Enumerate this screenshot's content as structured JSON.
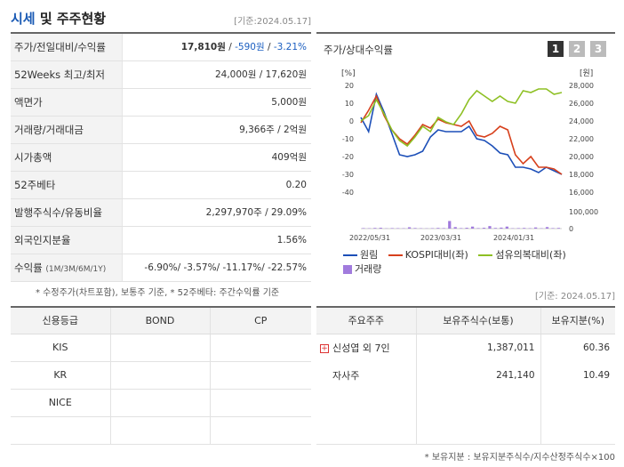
{
  "header": {
    "title_blue": "시세",
    "title_rest": " 및 주주현황",
    "date": "[기준:2024.05.17]"
  },
  "info": [
    {
      "label": "주가/전일대비/수익률",
      "price": "17,810원",
      "sep1": " / ",
      "change": "-590원",
      "sep2": " / ",
      "rate": "-3.21%"
    },
    {
      "label": "52Weeks 최고/최저",
      "value": "24,000원 / 17,620원"
    },
    {
      "label": "액면가",
      "value": "5,000원"
    },
    {
      "label": "거래량/거래대금",
      "value": "9,366주 / 2억원"
    },
    {
      "label": "시가총액",
      "value": "409억원"
    },
    {
      "label": "52주베타",
      "value": "0.20"
    },
    {
      "label": "발행주식수/유동비율",
      "value": "2,297,970주 / 29.09%"
    },
    {
      "label": "외국인지분율",
      "value": "1.56%"
    },
    {
      "label": "수익률",
      "label_small": "(1M/3M/6M/1Y)",
      "value": "-6.90%/ -3.57%/ -11.17%/ -22.57%"
    }
  ],
  "note": "* 수정주가(차트포함), 보통주 기준, * 52주베타: 주간수익률 기준",
  "chart_panel": {
    "title": "주가/상대수익률",
    "tabs": [
      "1",
      "2",
      "3"
    ],
    "mid_date": "[기준: 2024.05.17]"
  },
  "chart_data": {
    "type": "line",
    "left_axis": {
      "unit": "[%]",
      "ticks": [
        "20",
        "10",
        "0",
        "-10",
        "-20",
        "-30",
        "-40"
      ],
      "range": [
        -40,
        20
      ]
    },
    "right_axis": {
      "unit": "[원]",
      "ticks": [
        "28,000",
        "26,000",
        "24,000",
        "22,000",
        "20,000",
        "18,000",
        "16,000"
      ],
      "range": [
        16000,
        28000
      ]
    },
    "volume_axis": {
      "ticks": [
        "100,000",
        "0"
      ],
      "range": [
        0,
        100000
      ]
    },
    "x_ticks": [
      "2022/05/31",
      "2023/03/31",
      "2024/01/31"
    ],
    "series": [
      {
        "name": "원림",
        "color": "#1c4fb8",
        "values": [
          2,
          -6,
          15,
          5,
          -7,
          -19,
          -20,
          -19,
          -17,
          -9,
          -5,
          -6,
          -6,
          -6,
          -3,
          -10,
          -11,
          -14,
          -18,
          -19,
          -26,
          -26,
          -27,
          -29,
          -26,
          -28,
          -30
        ]
      },
      {
        "name": "KOSPI대비(좌)",
        "color": "#d7401c",
        "values": [
          -1,
          6,
          14,
          3,
          -5,
          -10,
          -13,
          -8,
          -2,
          -4,
          1,
          -1,
          -2,
          -3,
          0,
          -8,
          -9,
          -7,
          -3,
          -5,
          -19,
          -24,
          -20,
          -26,
          -26,
          -27,
          -30
        ]
      },
      {
        "name": "섬유의복대비(좌)",
        "color": "#8ec024",
        "values": [
          0,
          3,
          12,
          4,
          -5,
          -11,
          -14,
          -9,
          -3,
          -6,
          2,
          -0.5,
          -2,
          4,
          12,
          17,
          14,
          11,
          14,
          11,
          10,
          17,
          16,
          18,
          18,
          15,
          16
        ]
      },
      {
        "name": "거래량",
        "color": "#a17bdd",
        "values": [
          3000,
          2000,
          4000,
          5000,
          1500,
          3000,
          2500,
          2000,
          8000,
          3500,
          2000,
          1500,
          2500,
          4000,
          3000,
          45000,
          9000,
          3000,
          5000,
          12000,
          3000,
          5000,
          15000,
          4000,
          6000,
          12000,
          2000,
          3000,
          4000,
          2500,
          7000,
          2000,
          9000,
          3000,
          4000
        ]
      }
    ]
  },
  "credit": {
    "headers": [
      "신용등급",
      "BOND",
      "CP"
    ],
    "rows": [
      "KIS",
      "KR",
      "NICE",
      ""
    ]
  },
  "holders": {
    "headers": [
      "주요주주",
      "보유주식수(보통)",
      "보유지분(%)"
    ],
    "rows": [
      {
        "name": "신성엽 외 7인",
        "shares": "1,387,011",
        "pct": "60.36"
      },
      {
        "name": "자사주",
        "shares": "241,140",
        "pct": "10.49"
      }
    ],
    "foot": "* 보유지분 : 보유지분주식수/지수산정주식수×100"
  },
  "colors": {
    "accent_blue": "#1c5fc1",
    "kospi": "#d7401c",
    "textile": "#8ec024",
    "stock": "#1c4fb8",
    "volume": "#a17bdd"
  }
}
